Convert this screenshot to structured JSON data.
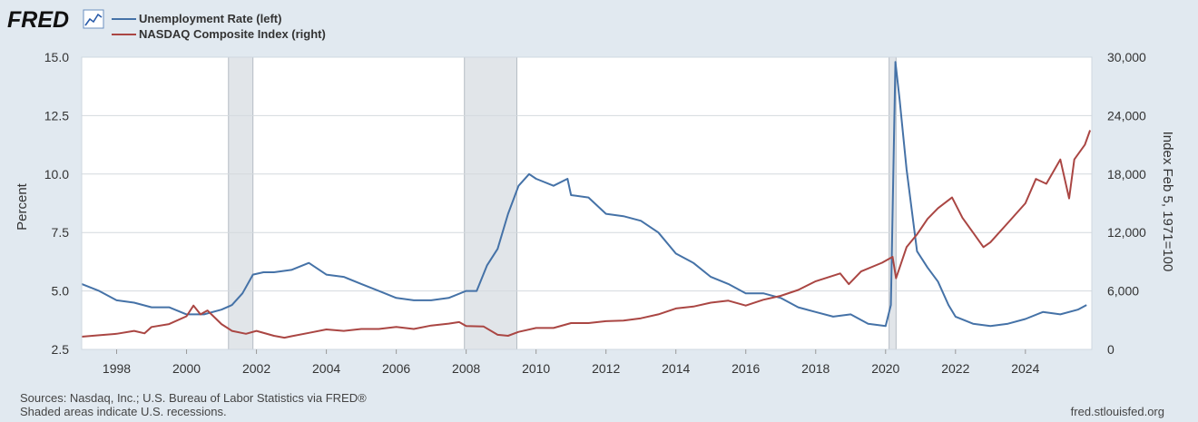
{
  "logo": {
    "text": "FRED"
  },
  "legend": [
    {
      "label": "Unemployment Rate (left)",
      "color": "#4572a7"
    },
    {
      "label": "NASDAQ Composite Index (right)",
      "color": "#aa4643"
    }
  ],
  "footer": {
    "sources": "Sources: Nasdaq, Inc.; U.S. Bureau of Labor Statistics via FRED®",
    "recession_note": "Shaded areas indicate U.S. recessions.",
    "site": "fred.stlouisfed.org"
  },
  "chart_data": {
    "type": "line",
    "left_axis": {
      "label": "Percent",
      "range": [
        2.5,
        15.0
      ],
      "ticks": [
        "15.0",
        "12.5",
        "10.0",
        "7.5",
        "5.0",
        "2.5"
      ]
    },
    "right_axis": {
      "label": "Index Feb 5, 1971=100",
      "range": [
        0,
        30000
      ],
      "ticks": [
        "30,000",
        "24,000",
        "18,000",
        "12,000",
        "6,000",
        "0"
      ]
    },
    "x_axis": {
      "range": [
        1997.0,
        2025.9
      ],
      "ticks": [
        "1998",
        "2000",
        "2002",
        "2004",
        "2006",
        "2008",
        "2010",
        "2012",
        "2014",
        "2016",
        "2018",
        "2020",
        "2022",
        "2024"
      ]
    },
    "grid": true,
    "recessions": [
      [
        2001.2,
        2001.9
      ],
      [
        2007.95,
        2009.45
      ],
      [
        2020.1,
        2020.3
      ]
    ],
    "series": [
      {
        "name": "Unemployment Rate (left)",
        "axis": "left",
        "color": "#4572a7",
        "x": [
          1997.0,
          1997.5,
          1998.0,
          1998.5,
          1999.0,
          1999.5,
          2000.0,
          2000.5,
          2001.0,
          2001.3,
          2001.6,
          2001.9,
          2002.2,
          2002.5,
          2003.0,
          2003.5,
          2004.0,
          2004.5,
          2005.0,
          2005.5,
          2006.0,
          2006.5,
          2007.0,
          2007.5,
          2008.0,
          2008.3,
          2008.6,
          2008.9,
          2009.2,
          2009.5,
          2009.8,
          2010.0,
          2010.5,
          2010.9,
          2011.0,
          2011.5,
          2012.0,
          2012.5,
          2013.0,
          2013.5,
          2014.0,
          2014.5,
          2015.0,
          2015.5,
          2016.0,
          2016.5,
          2017.0,
          2017.5,
          2018.0,
          2018.5,
          2019.0,
          2019.5,
          2020.0,
          2020.15,
          2020.28,
          2020.4,
          2020.6,
          2020.9,
          2021.2,
          2021.5,
          2021.8,
          2022.0,
          2022.5,
          2023.0,
          2023.5,
          2024.0,
          2024.5,
          2025.0,
          2025.5,
          2025.75
        ],
        "values": [
          5.3,
          5.0,
          4.6,
          4.5,
          4.3,
          4.3,
          4.0,
          4.0,
          4.2,
          4.4,
          4.9,
          5.7,
          5.8,
          5.8,
          5.9,
          6.2,
          5.7,
          5.6,
          5.3,
          5.0,
          4.7,
          4.6,
          4.6,
          4.7,
          5.0,
          5.0,
          6.1,
          6.8,
          8.3,
          9.5,
          10.0,
          9.8,
          9.5,
          9.8,
          9.1,
          9.0,
          8.3,
          8.2,
          8.0,
          7.5,
          6.6,
          6.2,
          5.6,
          5.3,
          4.9,
          4.9,
          4.7,
          4.3,
          4.1,
          3.9,
          4.0,
          3.6,
          3.5,
          4.4,
          14.8,
          13.2,
          10.2,
          6.7,
          6.0,
          5.4,
          4.4,
          3.9,
          3.6,
          3.5,
          3.6,
          3.8,
          4.1,
          4.0,
          4.2,
          4.4
        ]
      },
      {
        "name": "NASDAQ Composite Index (right)",
        "axis": "right",
        "color": "#aa4643",
        "x": [
          1997.0,
          1997.5,
          1998.0,
          1998.5,
          1998.8,
          1999.0,
          1999.5,
          2000.0,
          2000.2,
          2000.4,
          2000.6,
          2000.8,
          2001.0,
          2001.3,
          2001.7,
          2002.0,
          2002.5,
          2002.8,
          2003.0,
          2003.5,
          2004.0,
          2004.5,
          2005.0,
          2005.5,
          2006.0,
          2006.5,
          2007.0,
          2007.5,
          2007.8,
          2008.0,
          2008.5,
          2008.9,
          2009.2,
          2009.5,
          2010.0,
          2010.5,
          2011.0,
          2011.5,
          2012.0,
          2012.5,
          2013.0,
          2013.5,
          2014.0,
          2014.5,
          2015.0,
          2015.5,
          2016.0,
          2016.5,
          2017.0,
          2017.5,
          2018.0,
          2018.7,
          2018.95,
          2019.3,
          2019.9,
          2020.2,
          2020.3,
          2020.6,
          2020.9,
          2021.2,
          2021.5,
          2021.9,
          2022.2,
          2022.5,
          2022.8,
          2023.0,
          2023.5,
          2024.0,
          2024.3,
          2024.6,
          2025.0,
          2025.25,
          2025.4,
          2025.7,
          2025.85
        ],
        "values": [
          1300,
          1450,
          1600,
          1900,
          1650,
          2300,
          2600,
          3400,
          4500,
          3600,
          4000,
          3300,
          2600,
          1900,
          1600,
          1900,
          1400,
          1200,
          1350,
          1700,
          2050,
          1900,
          2100,
          2100,
          2300,
          2100,
          2450,
          2650,
          2800,
          2400,
          2350,
          1500,
          1400,
          1800,
          2200,
          2200,
          2700,
          2700,
          2900,
          2950,
          3200,
          3600,
          4200,
          4400,
          4800,
          5000,
          4500,
          5100,
          5500,
          6100,
          7000,
          7800,
          6700,
          8000,
          8900,
          9500,
          7300,
          10500,
          11800,
          13400,
          14500,
          15600,
          13500,
          12000,
          10500,
          11000,
          13000,
          15000,
          17500,
          17000,
          19500,
          15500,
          19500,
          21000,
          22500
        ]
      }
    ]
  }
}
